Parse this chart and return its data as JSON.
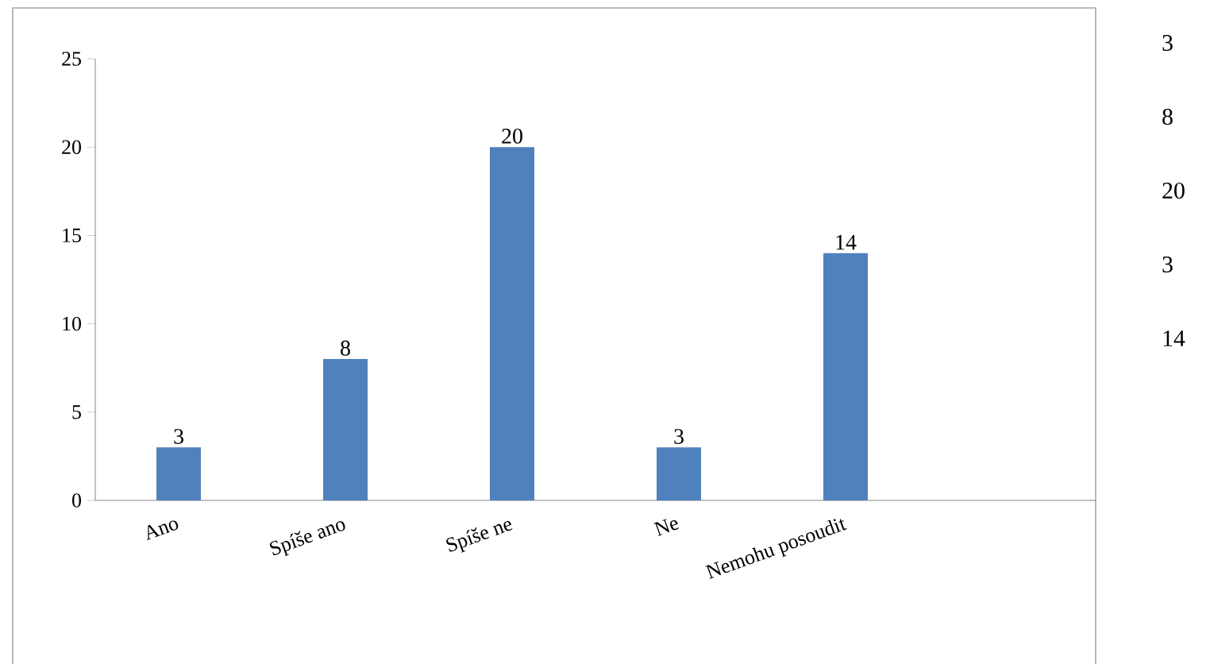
{
  "chart_data": {
    "type": "bar",
    "categories": [
      "Ano",
      "Spíše ano",
      "Spíše ne",
      "Ne",
      "Nemohu posoudit",
      null
    ],
    "values": [
      3,
      8,
      20,
      3,
      14,
      null
    ],
    "color": "#4f81bd",
    "ylim": [
      0,
      25
    ],
    "yticks": [
      0,
      5,
      10,
      15,
      20,
      25
    ],
    "data_labels": true,
    "annotations": [
      "3",
      "8",
      "20",
      "3",
      "14"
    ]
  }
}
